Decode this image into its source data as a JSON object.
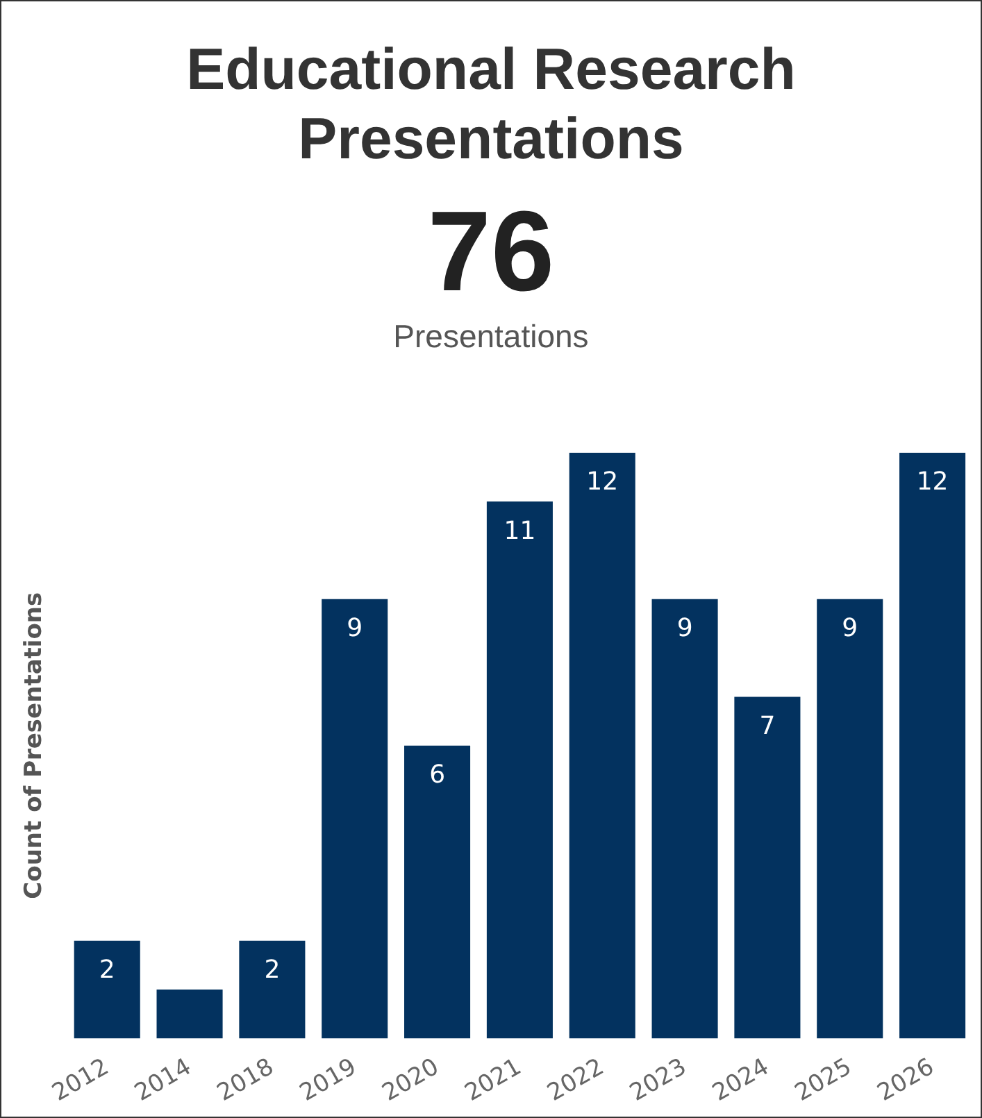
{
  "chart_data": {
    "type": "bar",
    "title": "Educational Research Presentations",
    "annotations": [
      "76",
      "Presentations"
    ],
    "ylabel": "Count of Presentations",
    "categories": [
      "2012",
      "2014",
      "2018",
      "2019",
      "2020",
      "2021",
      "2022",
      "2023",
      "2024",
      "2025",
      "2026"
    ],
    "values": [
      2,
      1,
      2,
      9,
      6,
      11,
      12,
      9,
      7,
      9,
      12
    ],
    "value_labels": [
      "2",
      null,
      "2",
      "9",
      "6",
      "11",
      "12",
      "9",
      "7",
      "9",
      "12"
    ],
    "color": "#03325f",
    "grid": false,
    "legend": false
  }
}
